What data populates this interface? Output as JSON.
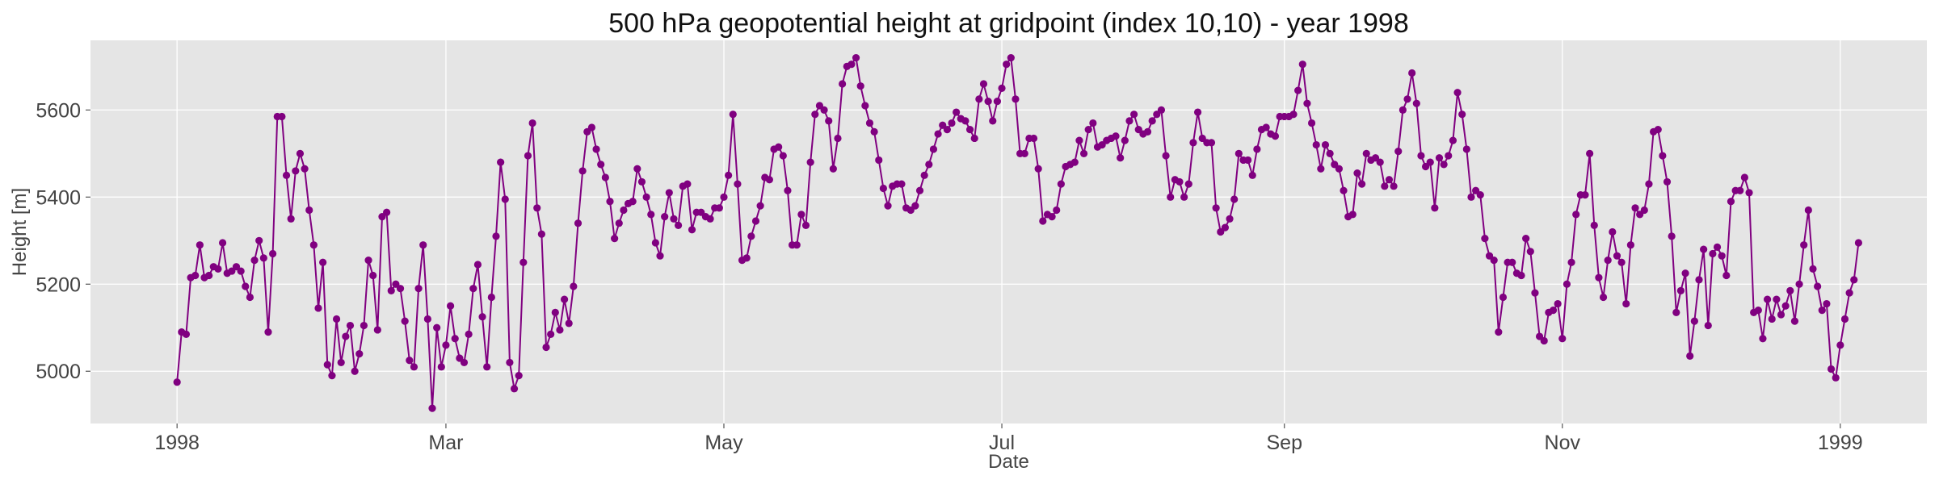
{
  "chart_data": {
    "type": "line",
    "title": "500 hPa geopotential height at gridpoint (index 10,10) - year 1998",
    "xlabel": "Date",
    "ylabel": "Height [m]",
    "x_ticks": [
      {
        "date": "1998-01-01",
        "label": "1998"
      },
      {
        "date": "1998-03-01",
        "label": "Mar"
      },
      {
        "date": "1998-05-01",
        "label": "May"
      },
      {
        "date": "1998-07-01",
        "label": "Jul"
      },
      {
        "date": "1998-09-01",
        "label": "Sep"
      },
      {
        "date": "1998-11-01",
        "label": "Nov"
      },
      {
        "date": "1999-01-01",
        "label": "1999"
      }
    ],
    "y_ticks": [
      5000,
      5200,
      5400,
      5600
    ],
    "xlim": [
      "1997-12-13",
      "1999-01-20"
    ],
    "ylim": [
      4880,
      5760
    ],
    "grid": true,
    "color": "#800080",
    "background": "#e5e5e5",
    "x_start": "1998-01-01",
    "x_step_days": 1,
    "series": [
      {
        "values": [
          4975,
          5090,
          5085,
          5215,
          5220,
          5290,
          5215,
          5220,
          5240,
          5235,
          5295,
          5225,
          5230,
          5240,
          5230,
          5195,
          5170,
          5255,
          5300,
          5260,
          5090,
          5270,
          5585,
          5585,
          5450,
          5350,
          5460,
          5500,
          5465,
          5370,
          5290,
          5145,
          5250,
          5015,
          4990,
          5120,
          5020,
          5080,
          5105,
          5000,
          5040,
          5105,
          5255,
          5220,
          5095,
          5355,
          5365,
          5185,
          5200,
          5190,
          5115,
          5025,
          5010,
          5190,
          5290,
          5120,
          4915,
          5100,
          5010,
          5060,
          5150,
          5075,
          5030,
          5020,
          5085,
          5190,
          5245,
          5125,
          5010,
          5170,
          5310,
          5480,
          5395,
          5020,
          4960,
          4990,
          5250,
          5495,
          5570,
          5375,
          5315,
          5055,
          5085,
          5135,
          5095,
          5165,
          5110,
          5195,
          5340,
          5460,
          5550,
          5560,
          5510,
          5475,
          5445,
          5390,
          5305,
          5340,
          5370,
          5385,
          5390,
          5465,
          5435,
          5400,
          5360,
          5295,
          5265,
          5355,
          5410,
          5350,
          5335,
          5425,
          5430,
          5325,
          5365,
          5365,
          5355,
          5350,
          5375,
          5375,
          5400,
          5450,
          5590,
          5430,
          5255,
          5260,
          5310,
          5345,
          5380,
          5445,
          5440,
          5510,
          5515,
          5495,
          5415,
          5290,
          5290,
          5360,
          5335,
          5480,
          5590,
          5610,
          5600,
          5575,
          5465,
          5535,
          5660,
          5700,
          5705,
          5720,
          5655,
          5610,
          5570,
          5550,
          5485,
          5420,
          5380,
          5425,
          5430,
          5430,
          5375,
          5370,
          5380,
          5415,
          5450,
          5475,
          5510,
          5545,
          5565,
          5555,
          5570,
          5595,
          5580,
          5575,
          5555,
          5535,
          5625,
          5660,
          5620,
          5575,
          5620,
          5650,
          5705,
          5720,
          5625,
          5500,
          5500,
          5535,
          5535,
          5465,
          5345,
          5360,
          5355,
          5370,
          5430,
          5470,
          5475,
          5480,
          5530,
          5500,
          5555,
          5570,
          5515,
          5520,
          5530,
          5535,
          5540,
          5490,
          5530,
          5575,
          5590,
          5555,
          5545,
          5550,
          5575,
          5590,
          5600,
          5495,
          5400,
          5440,
          5435,
          5400,
          5430,
          5525,
          5595,
          5535,
          5525,
          5525,
          5375,
          5320,
          5330,
          5350,
          5395,
          5500,
          5485,
          5485,
          5450,
          5510,
          5555,
          5560,
          5545,
          5540,
          5585,
          5585,
          5585,
          5590,
          5645,
          5705,
          5615,
          5570,
          5520,
          5465,
          5520,
          5500,
          5475,
          5465,
          5415,
          5355,
          5360,
          5455,
          5430,
          5500,
          5485,
          5490,
          5480,
          5425,
          5440,
          5425,
          5505,
          5600,
          5625,
          5685,
          5615,
          5495,
          5470,
          5480,
          5375,
          5490,
          5475,
          5495,
          5530,
          5640,
          5590,
          5510,
          5400,
          5415,
          5405,
          5305,
          5265,
          5255,
          5090,
          5170,
          5250,
          5250,
          5225,
          5220,
          5305,
          5275,
          5180,
          5080,
          5070,
          5135,
          5140,
          5155,
          5075,
          5200,
          5250,
          5360,
          5405,
          5405,
          5500,
          5335,
          5215,
          5170,
          5255,
          5320,
          5265,
          5250,
          5155,
          5290,
          5375,
          5360,
          5370,
          5430,
          5550,
          5555,
          5495,
          5435,
          5310,
          5135,
          5185,
          5225,
          5035,
          5115,
          5210,
          5280,
          5105,
          5270,
          5285,
          5265,
          5220,
          5390,
          5415,
          5415,
          5445,
          5410,
          5135,
          5140,
          5075,
          5165,
          5120,
          5165,
          5130,
          5150,
          5185,
          5115,
          5200,
          5290,
          5370,
          5235,
          5195,
          5140,
          5155,
          5005,
          4985,
          5060,
          5120,
          5180,
          5210,
          5295
        ]
      }
    ]
  }
}
